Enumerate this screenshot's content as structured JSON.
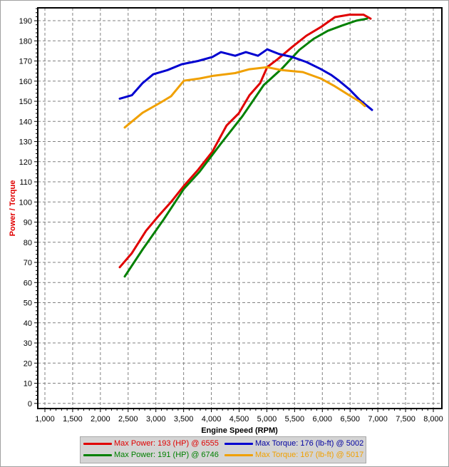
{
  "chart_data": {
    "type": "line",
    "title": "",
    "xlabel": "Engine Speed (RPM)",
    "ylabel": "Power / Torque",
    "xlim": [
      1000,
      8000
    ],
    "ylim": [
      0,
      195
    ],
    "xticks": [
      "1,000",
      "1,500",
      "2,000",
      "2,500",
      "3,000",
      "3,500",
      "4,000",
      "4,500",
      "5,000",
      "5,500",
      "6,000",
      "6,500",
      "7,000",
      "7,500",
      "8,000"
    ],
    "xtick_values": [
      1000,
      1500,
      2000,
      2500,
      3000,
      3500,
      4000,
      4500,
      5000,
      5500,
      6000,
      6500,
      7000,
      7500,
      8000
    ],
    "yticks": [
      0,
      10,
      20,
      30,
      40,
      50,
      60,
      70,
      80,
      90,
      100,
      110,
      120,
      130,
      140,
      150,
      160,
      170,
      180,
      190
    ],
    "grid": true,
    "legend_placement": "bottom",
    "series": [
      {
        "name": "Max Power: 193 (HP) @ 6555",
        "color": "#e00000",
        "x": [
          2348,
          2567,
          2823,
          3042,
          3273,
          3504,
          3761,
          4018,
          4275,
          4493,
          4686,
          4879,
          5007,
          5200,
          5457,
          5714,
          5971,
          6228,
          6484,
          6741,
          6870
        ],
        "y": [
          67.6,
          74.6,
          85.7,
          92.9,
          100,
          108,
          116,
          125,
          138,
          144,
          153,
          159,
          167,
          171,
          177,
          182.6,
          186.8,
          191.8,
          193,
          193,
          191
        ]
      },
      {
        "name": "Max Power: 191 (HP) @ 6746",
        "color": "#008000",
        "x": [
          2438,
          2760,
          3145,
          3504,
          3787,
          4172,
          4558,
          4943,
          5264,
          5585,
          5842,
          6099,
          6356,
          6612,
          6805
        ],
        "y": [
          63,
          76.4,
          91.5,
          106.5,
          115,
          129,
          142.5,
          158,
          166,
          175.5,
          181,
          185,
          187.6,
          190,
          191
        ]
      },
      {
        "name": "Max Torque: 176 (lb-ft) @ 5002",
        "color": "#0000d0",
        "x": [
          2348,
          2567,
          2760,
          2952,
          3209,
          3466,
          3761,
          4018,
          4172,
          4429,
          4622,
          4840,
          5007,
          5225,
          5457,
          5714,
          5971,
          6163,
          6292,
          6484,
          6677,
          6895
        ],
        "y": [
          151.3,
          153,
          159,
          163.4,
          165.5,
          168.4,
          170,
          172,
          174.4,
          172.6,
          174.4,
          172.6,
          175.8,
          173.4,
          172,
          169.5,
          166,
          163,
          160.4,
          156,
          150.6,
          145.7
        ]
      },
      {
        "name": "Max Torque: 167 (lb-ft) @ 5017",
        "color": "#f0a000",
        "x": [
          2438,
          2760,
          3081,
          3273,
          3504,
          3787,
          4043,
          4429,
          4686,
          5007,
          5264,
          5650,
          5971,
          6228,
          6484,
          6677,
          6767
        ],
        "y": [
          137,
          144.3,
          149.3,
          152.5,
          160.2,
          161.3,
          162.7,
          164,
          165.9,
          166.9,
          165.5,
          164.5,
          161.3,
          157.4,
          153,
          149.8,
          147.6
        ]
      }
    ]
  }
}
